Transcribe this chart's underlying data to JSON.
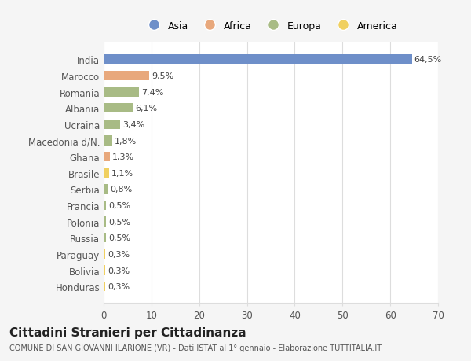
{
  "categories": [
    "India",
    "Marocco",
    "Romania",
    "Albania",
    "Ucraina",
    "Macedonia d/N.",
    "Ghana",
    "Brasile",
    "Serbia",
    "Francia",
    "Polonia",
    "Russia",
    "Paraguay",
    "Bolivia",
    "Honduras"
  ],
  "values": [
    64.5,
    9.5,
    7.4,
    6.1,
    3.4,
    1.8,
    1.3,
    1.1,
    0.8,
    0.5,
    0.5,
    0.5,
    0.3,
    0.3,
    0.3
  ],
  "labels": [
    "64,5%",
    "9,5%",
    "7,4%",
    "6,1%",
    "3,4%",
    "1,8%",
    "1,3%",
    "1,1%",
    "0,8%",
    "0,5%",
    "0,5%",
    "0,5%",
    "0,3%",
    "0,3%",
    "0,3%"
  ],
  "continents": [
    "Asia",
    "Africa",
    "Europa",
    "Europa",
    "Europa",
    "Europa",
    "Africa",
    "America",
    "Europa",
    "Europa",
    "Europa",
    "Europa",
    "America",
    "America",
    "America"
  ],
  "colors": {
    "Asia": "#6e8fc9",
    "Africa": "#e8a87c",
    "Europa": "#a8bb85",
    "America": "#f0d060"
  },
  "legend_order": [
    "Asia",
    "Africa",
    "Europa",
    "America"
  ],
  "xlim": [
    0,
    70
  ],
  "xticks": [
    0,
    10,
    20,
    30,
    40,
    50,
    60,
    70
  ],
  "title": "Cittadini Stranieri per Cittadinanza",
  "subtitle": "COMUNE DI SAN GIOVANNI ILARIONE (VR) - Dati ISTAT al 1° gennaio - Elaborazione TUTTITALIA.IT",
  "background_color": "#f5f5f5",
  "bar_background": "#ffffff",
  "grid_color": "#dddddd"
}
